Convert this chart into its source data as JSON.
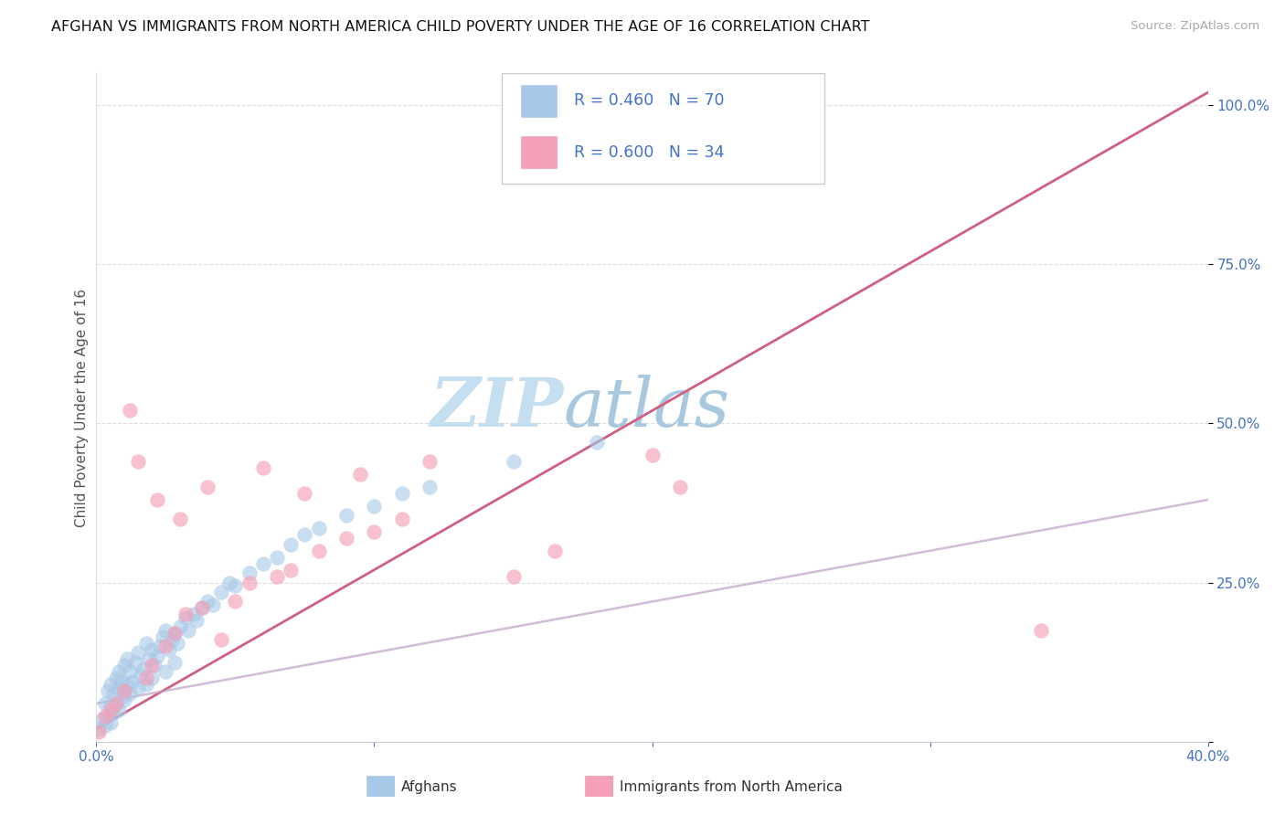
{
  "title": "AFGHAN VS IMMIGRANTS FROM NORTH AMERICA CHILD POVERTY UNDER THE AGE OF 16 CORRELATION CHART",
  "source": "Source: ZipAtlas.com",
  "ylabel": "Child Poverty Under the Age of 16",
  "xlim": [
    0.0,
    0.4
  ],
  "ylim": [
    0.0,
    1.05
  ],
  "r1": 0.46,
  "n1": 70,
  "r2": 0.6,
  "n2": 34,
  "legend1_label": "Afghans",
  "legend2_label": "Immigrants from North America",
  "color_blue": "#a8c8e8",
  "color_pink": "#f4a0b8",
  "trendline_pink_color": "#d06080",
  "trendline_blue_color": "#c0a0c8",
  "watermark_zip_color": "#c8dff0",
  "watermark_atlas_color": "#b0c8e0",
  "afghans_x": [
    0.001,
    0.002,
    0.003,
    0.003,
    0.004,
    0.004,
    0.005,
    0.005,
    0.005,
    0.006,
    0.006,
    0.007,
    0.007,
    0.008,
    0.008,
    0.008,
    0.009,
    0.009,
    0.01,
    0.01,
    0.01,
    0.011,
    0.011,
    0.012,
    0.012,
    0.013,
    0.014,
    0.015,
    0.015,
    0.016,
    0.017,
    0.018,
    0.018,
    0.019,
    0.02,
    0.02,
    0.021,
    0.022,
    0.023,
    0.024,
    0.025,
    0.025,
    0.026,
    0.027,
    0.028,
    0.028,
    0.029,
    0.03,
    0.032,
    0.033,
    0.035,
    0.036,
    0.038,
    0.04,
    0.042,
    0.045,
    0.048,
    0.05,
    0.055,
    0.06,
    0.065,
    0.07,
    0.075,
    0.08,
    0.09,
    0.1,
    0.11,
    0.12,
    0.15,
    0.18
  ],
  "afghans_y": [
    0.02,
    0.035,
    0.025,
    0.06,
    0.04,
    0.08,
    0.03,
    0.055,
    0.09,
    0.045,
    0.075,
    0.06,
    0.1,
    0.05,
    0.085,
    0.11,
    0.07,
    0.095,
    0.065,
    0.08,
    0.12,
    0.09,
    0.13,
    0.075,
    0.11,
    0.095,
    0.125,
    0.085,
    0.14,
    0.105,
    0.115,
    0.09,
    0.155,
    0.13,
    0.1,
    0.145,
    0.12,
    0.135,
    0.15,
    0.165,
    0.11,
    0.175,
    0.145,
    0.16,
    0.125,
    0.17,
    0.155,
    0.18,
    0.195,
    0.175,
    0.2,
    0.19,
    0.21,
    0.22,
    0.215,
    0.235,
    0.25,
    0.245,
    0.265,
    0.28,
    0.29,
    0.31,
    0.325,
    0.335,
    0.355,
    0.37,
    0.39,
    0.4,
    0.44,
    0.47
  ],
  "na_x": [
    0.001,
    0.003,
    0.005,
    0.007,
    0.01,
    0.012,
    0.015,
    0.018,
    0.02,
    0.022,
    0.025,
    0.028,
    0.03,
    0.032,
    0.038,
    0.04,
    0.045,
    0.05,
    0.055,
    0.06,
    0.065,
    0.07,
    0.075,
    0.08,
    0.09,
    0.095,
    0.1,
    0.11,
    0.12,
    0.15,
    0.165,
    0.2,
    0.21,
    0.34
  ],
  "na_y": [
    0.015,
    0.04,
    0.05,
    0.06,
    0.08,
    0.52,
    0.44,
    0.1,
    0.12,
    0.38,
    0.15,
    0.17,
    0.35,
    0.2,
    0.21,
    0.4,
    0.16,
    0.22,
    0.25,
    0.43,
    0.26,
    0.27,
    0.39,
    0.3,
    0.32,
    0.42,
    0.33,
    0.35,
    0.44,
    0.26,
    0.3,
    0.45,
    0.4,
    0.175
  ],
  "pink_trend_x0": 0.0,
  "pink_trend_y0": 0.02,
  "pink_trend_x1": 0.4,
  "pink_trend_y1": 1.02,
  "blue_trend_x0": 0.0,
  "blue_trend_y0": 0.06,
  "blue_trend_x1": 0.4,
  "blue_trend_y1": 0.38
}
